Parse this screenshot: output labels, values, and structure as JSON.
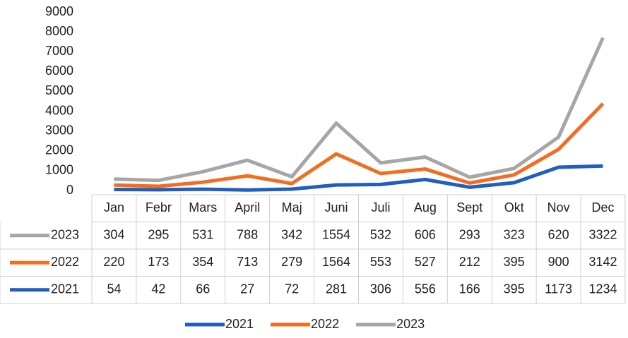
{
  "chart_data": {
    "type": "line",
    "stacked": true,
    "categories": [
      "Jan",
      "Febr",
      "Mars",
      "April",
      "Maj",
      "Juni",
      "Juli",
      "Aug",
      "Sept",
      "Okt",
      "Nov",
      "Dec"
    ],
    "series": [
      {
        "name": "2021",
        "color": "#1f5fbf",
        "values": [
          54,
          42,
          66,
          27,
          72,
          281,
          306,
          556,
          166,
          395,
          1173,
          1234
        ]
      },
      {
        "name": "2022",
        "color": "#f36d21",
        "values": [
          220,
          173,
          354,
          713,
          279,
          1564,
          553,
          527,
          212,
          395,
          900,
          3142
        ]
      },
      {
        "name": "2023",
        "color": "#a6a6a6",
        "values": [
          304,
          295,
          531,
          788,
          342,
          1554,
          532,
          606,
          293,
          323,
          620,
          3322
        ]
      }
    ],
    "ylim": [
      0,
      9000
    ],
    "yticks": [
      0,
      1000,
      2000,
      3000,
      4000,
      5000,
      6000,
      7000,
      8000,
      9000
    ],
    "grid": false,
    "legend": "bottom",
    "data_table": true
  }
}
